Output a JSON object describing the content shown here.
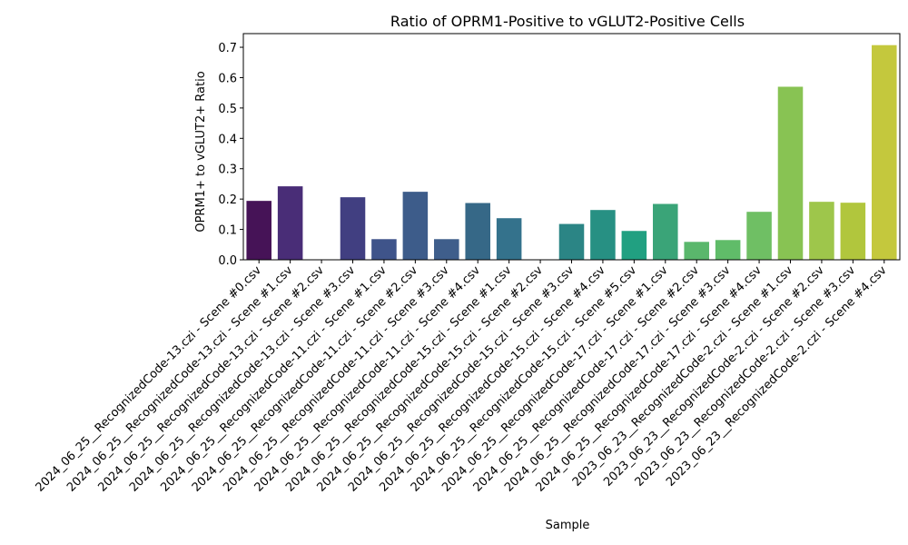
{
  "chart_data": {
    "type": "bar",
    "title": "Ratio of OPRM1-Positive to vGLUT2-Positive Cells",
    "xlabel": "Sample",
    "ylabel": "OPRM1+ to vGLUT2+ Ratio",
    "ylim": [
      0,
      0.745
    ],
    "yticks": [
      "0.0",
      "0.1",
      "0.2",
      "0.3",
      "0.4",
      "0.5",
      "0.6",
      "0.7"
    ],
    "grid": false,
    "legend": "none",
    "palette": "viridis",
    "categories": [
      "2024_06_25__RecognizedCode-13.czi - Scene #0.csv",
      "2024_06_25__RecognizedCode-13.czi - Scene #1.csv",
      "2024_06_25__RecognizedCode-13.czi - Scene #2.csv",
      "2024_06_25__RecognizedCode-13.czi - Scene #3.csv",
      "2024_06_25__RecognizedCode-11.czi - Scene #1.csv",
      "2024_06_25__RecognizedCode-11.czi - Scene #2.csv",
      "2024_06_25__RecognizedCode-11.czi - Scene #3.csv",
      "2024_06_25__RecognizedCode-11.czi - Scene #4.csv",
      "2024_06_25__RecognizedCode-15.czi - Scene #1.csv",
      "2024_06_25__RecognizedCode-15.czi - Scene #2.csv",
      "2024_06_25__RecognizedCode-15.czi - Scene #3.csv",
      "2024_06_25__RecognizedCode-15.czi - Scene #4.csv",
      "2024_06_25__RecognizedCode-15.czi - Scene #5.csv",
      "2024_06_25__RecognizedCode-17.czi - Scene #1.csv",
      "2024_06_25__RecognizedCode-17.czi - Scene #2.csv",
      "2024_06_25__RecognizedCode-17.czi - Scene #3.csv",
      "2024_06_25__RecognizedCode-17.czi - Scene #4.csv",
      "2023_06_23__RecognizedCode-2.czi - Scene #1.csv",
      "2023_06_23__RecognizedCode-2.czi - Scene #2.csv",
      "2023_06_23__RecognizedCode-2.czi - Scene #3.csv",
      "2023_06_23__RecognizedCode-2.czi - Scene #4.csv"
    ],
    "values": [
      0.194,
      0.242,
      0.0,
      0.206,
      0.068,
      0.224,
      0.068,
      0.187,
      0.137,
      0.0,
      0.118,
      0.164,
      0.095,
      0.184,
      0.059,
      0.065,
      0.158,
      0.57,
      0.191,
      0.188,
      0.707
    ],
    "colors": [
      "#461357",
      "#492d77",
      "#453e80",
      "#413f81",
      "#3f548a",
      "#3d5c8a",
      "#3f5e8b",
      "#366887",
      "#34728c",
      "#2a7b86",
      "#2b8585",
      "#279083",
      "#21a081",
      "#3aa478",
      "#5ab76c",
      "#60bc69",
      "#6fbf64",
      "#88c353",
      "#9ec64b",
      "#b1c63d",
      "#c4c83d"
    ]
  }
}
